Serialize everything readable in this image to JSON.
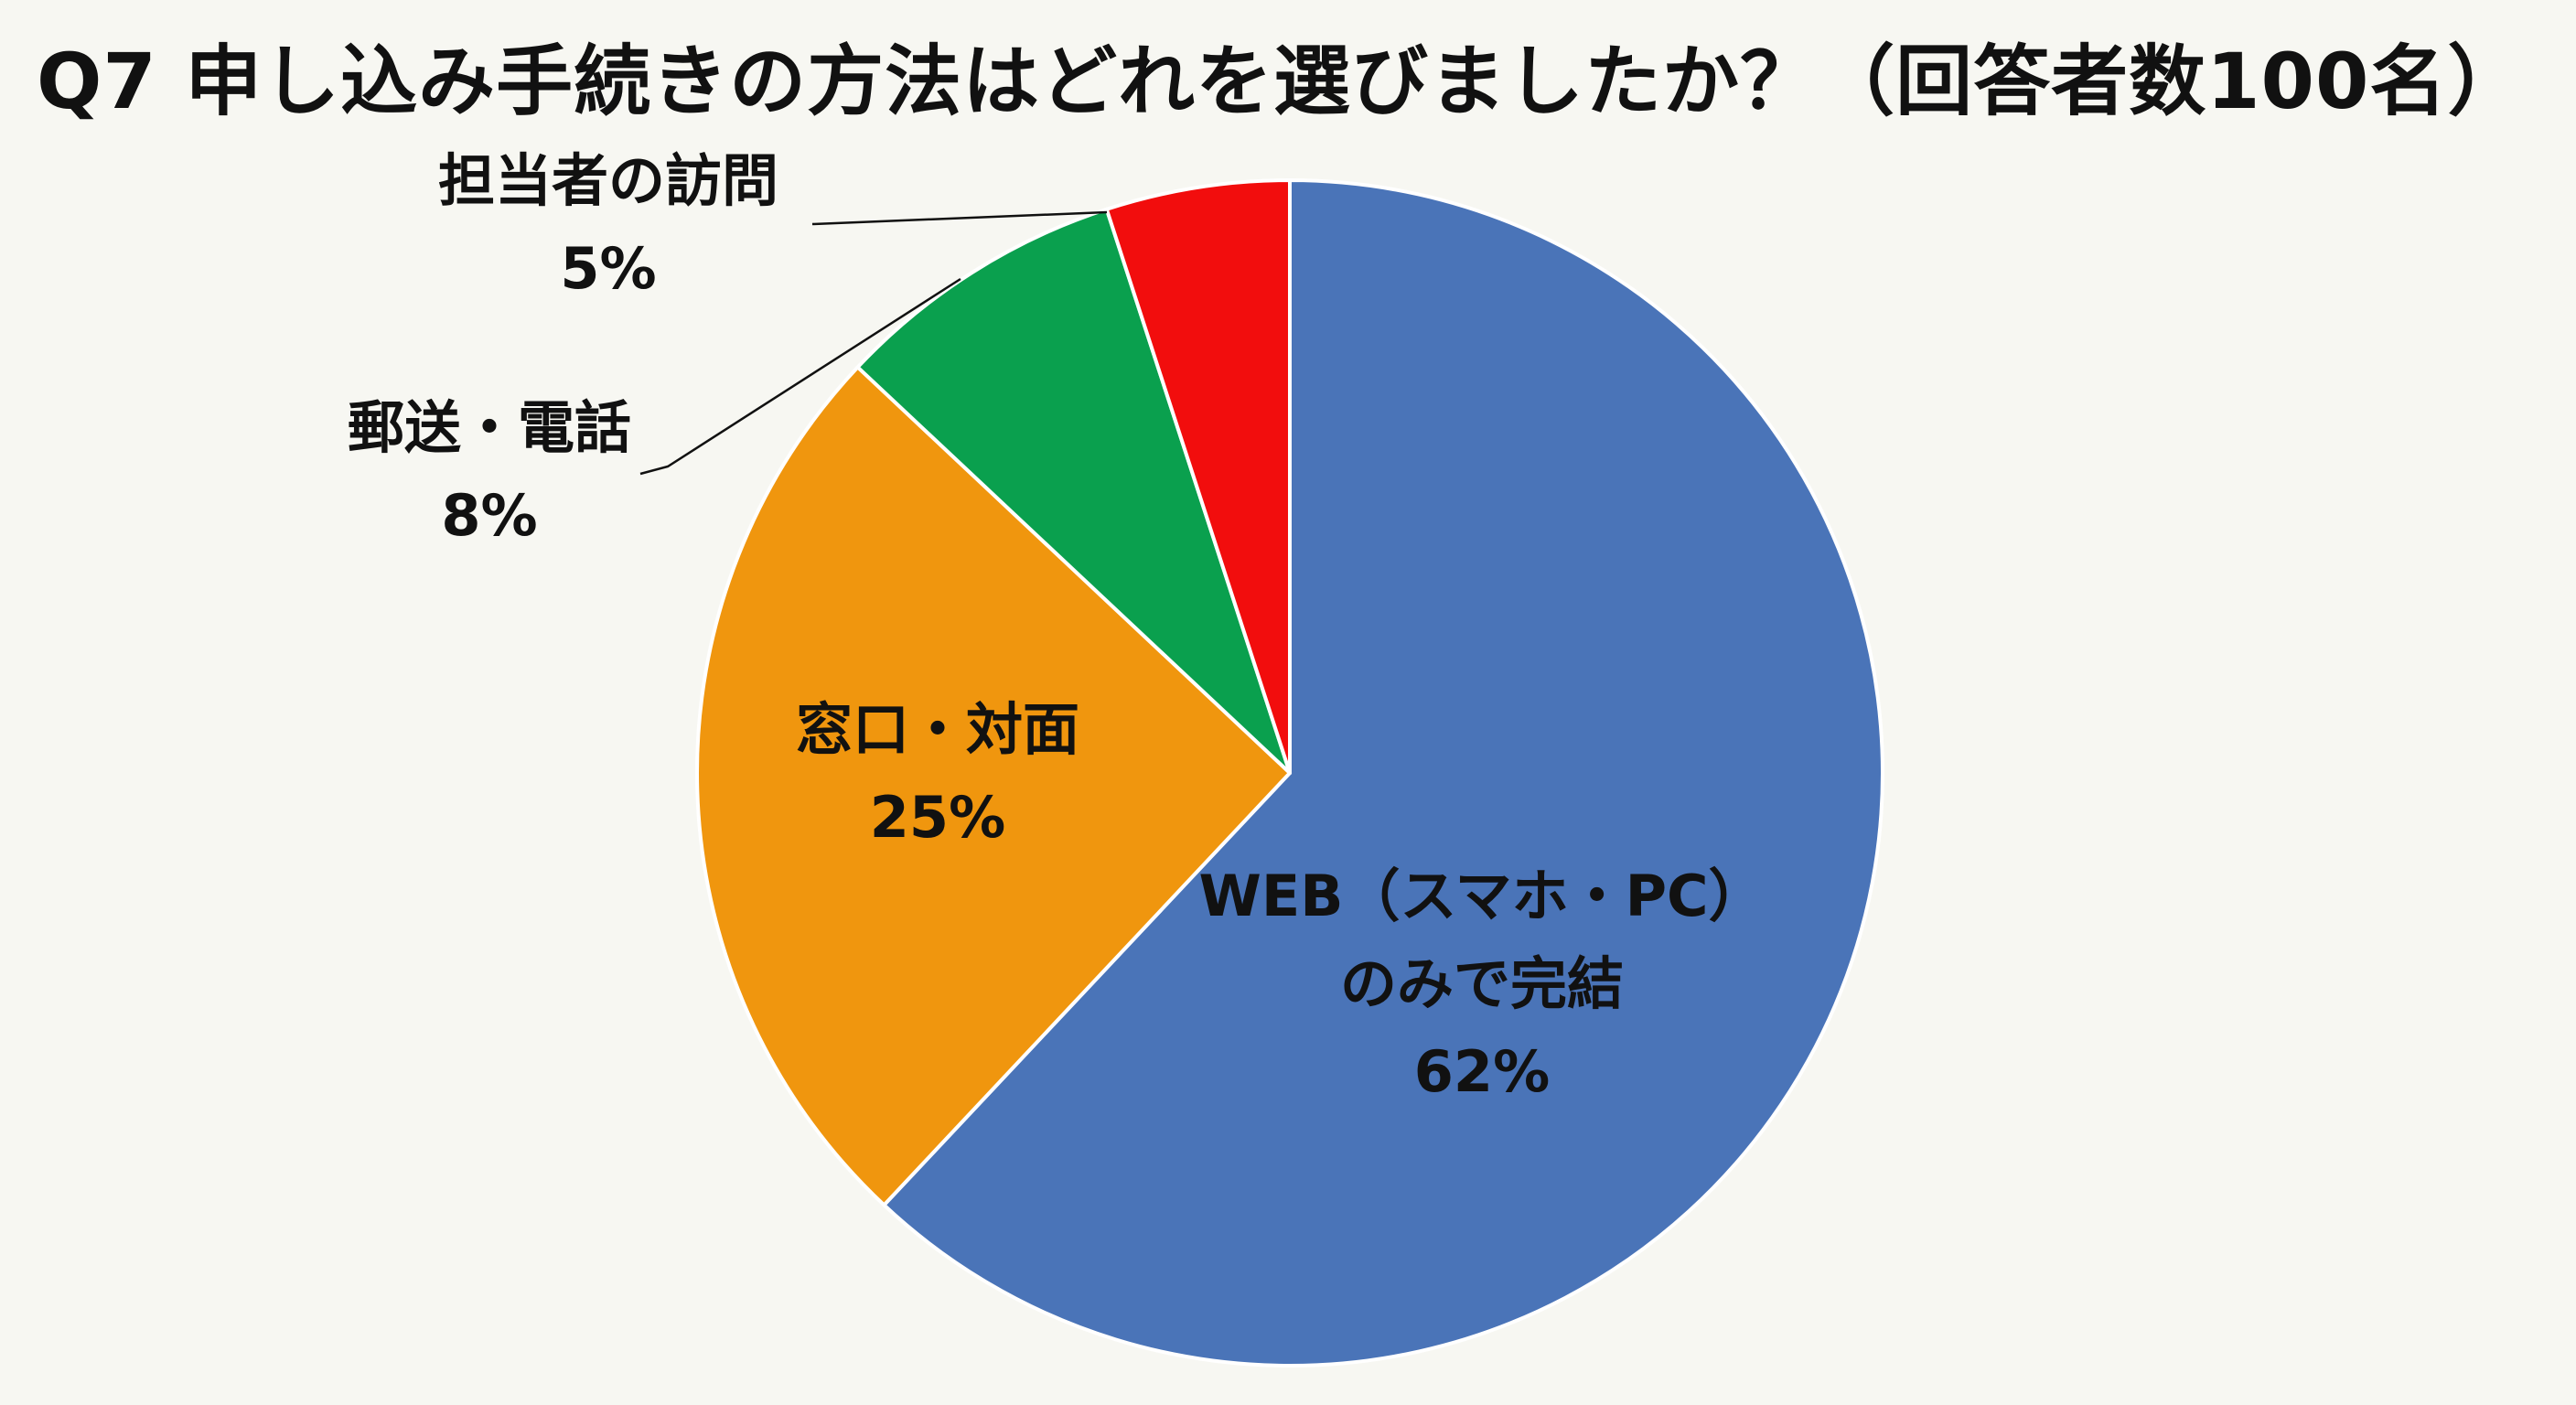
{
  "chart_data": {
    "type": "pie",
    "title": "Q7 申し込み手続きの方法はどれを選びましたか？（回答者数100名）",
    "unit": "%",
    "start": "12 o'clock",
    "direction": "clockwise",
    "slices": [
      {
        "label": [
          "WEB（スマホ・PC）",
          "のみで完結"
        ],
        "value": 62,
        "value_label": "62%",
        "color": "#4a74b8",
        "label_placement": "inside"
      },
      {
        "label": [
          "窓口・対面"
        ],
        "value": 25,
        "value_label": "25%",
        "color": "#f0960e",
        "label_placement": "inside"
      },
      {
        "label": [
          "郵送・電話"
        ],
        "value": 8,
        "value_label": "8%",
        "color": "#0aa04e",
        "label_placement": "outside-left",
        "leader_line": true
      },
      {
        "label": [
          "担当者の訪問"
        ],
        "value": 5,
        "value_label": "5%",
        "color": "#f20d0d",
        "label_placement": "outside-left",
        "leader_line": true
      }
    ]
  }
}
